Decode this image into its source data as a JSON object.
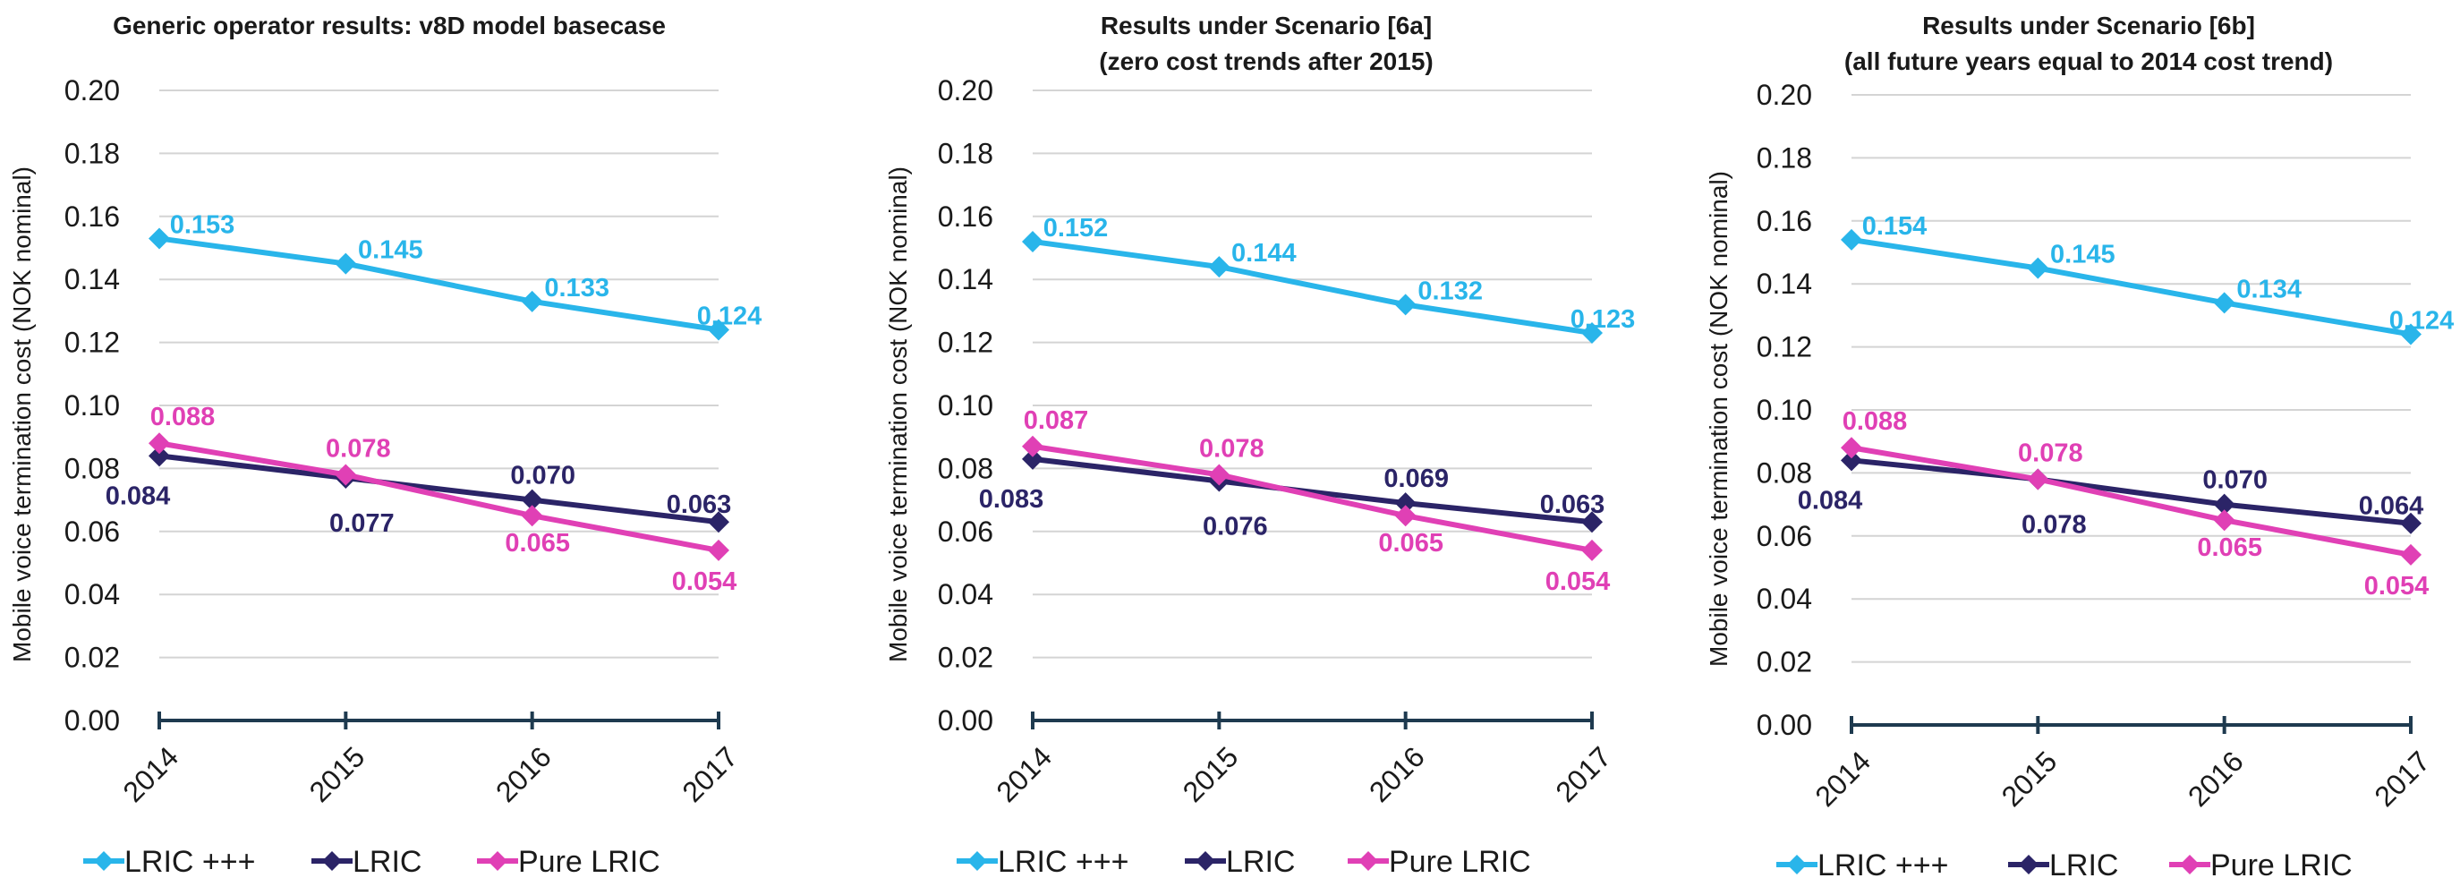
{
  "chart_data": [
    {
      "type": "line",
      "title": "Generic operator results: v8D model basecase",
      "subtitle": "",
      "ylabel": "Mobile voice termination cost (NOK nominal)",
      "xlabel": "",
      "categories": [
        "2014",
        "2015",
        "2016",
        "2017"
      ],
      "yticks": [
        "0.00",
        "0.02",
        "0.04",
        "0.06",
        "0.08",
        "0.10",
        "0.12",
        "0.14",
        "0.16",
        "0.18",
        "0.20"
      ],
      "ylim": [
        0,
        0.2
      ],
      "grid": "horizontal",
      "legend_position": "bottom",
      "series": [
        {
          "name": "LRIC +++",
          "color": "#29b5ea",
          "values": [
            0.153,
            0.145,
            0.133,
            0.124
          ],
          "labels": [
            "0.153",
            "0.145",
            "0.133",
            "0.124"
          ]
        },
        {
          "name": "LRIC",
          "color": "#2b2467",
          "values": [
            0.084,
            0.077,
            0.07,
            0.063
          ],
          "labels": [
            "0.084",
            "0.077",
            "0.070",
            "0.063"
          ]
        },
        {
          "name": "Pure LRIC",
          "color": "#e040b5",
          "values": [
            0.088,
            0.078,
            0.065,
            0.054
          ],
          "labels": [
            "0.088",
            "0.078",
            "0.065",
            "0.054"
          ]
        }
      ]
    },
    {
      "type": "line",
      "title": "Results under Scenario [6a]",
      "subtitle": "(zero cost trends after 2015)",
      "ylabel": "Mobile voice termination cost (NOK nominal)",
      "xlabel": "",
      "categories": [
        "2014",
        "2015",
        "2016",
        "2017"
      ],
      "yticks": [
        "0.00",
        "0.02",
        "0.04",
        "0.06",
        "0.08",
        "0.10",
        "0.12",
        "0.14",
        "0.16",
        "0.18",
        "0.20"
      ],
      "ylim": [
        0,
        0.2
      ],
      "grid": "horizontal",
      "legend_position": "bottom",
      "series": [
        {
          "name": "LRIC +++",
          "color": "#29b5ea",
          "values": [
            0.152,
            0.144,
            0.132,
            0.123
          ],
          "labels": [
            "0.152",
            "0.144",
            "0.132",
            "0.123"
          ]
        },
        {
          "name": "LRIC",
          "color": "#2b2467",
          "values": [
            0.083,
            0.076,
            0.069,
            0.063
          ],
          "labels": [
            "0.083",
            "0.076",
            "0.069",
            "0.063"
          ]
        },
        {
          "name": "Pure LRIC",
          "color": "#e040b5",
          "values": [
            0.087,
            0.078,
            0.065,
            0.054
          ],
          "labels": [
            "0.087",
            "0.078",
            "0.065",
            "0.054"
          ]
        }
      ]
    },
    {
      "type": "line",
      "title": "Results under Scenario [6b]",
      "subtitle": "(all future years equal to 2014 cost trend)",
      "ylabel": "Mobile voice termination cost (NOK nominal)",
      "xlabel": "",
      "categories": [
        "2014",
        "2015",
        "2016",
        "2017"
      ],
      "yticks": [
        "0.00",
        "0.02",
        "0.04",
        "0.06",
        "0.08",
        "0.10",
        "0.12",
        "0.14",
        "0.16",
        "0.18",
        "0.20"
      ],
      "ylim": [
        0,
        0.2
      ],
      "grid": "horizontal",
      "legend_position": "bottom",
      "series": [
        {
          "name": "LRIC +++",
          "color": "#29b5ea",
          "values": [
            0.154,
            0.145,
            0.134,
            0.124
          ],
          "labels": [
            "0.154",
            "0.145",
            "0.134",
            "0.124"
          ]
        },
        {
          "name": "LRIC",
          "color": "#2b2467",
          "values": [
            0.084,
            0.078,
            0.07,
            0.064
          ],
          "labels": [
            "0.084",
            "0.078",
            "0.070",
            "0.064"
          ]
        },
        {
          "name": "Pure LRIC",
          "color": "#e040b5",
          "values": [
            0.088,
            0.078,
            0.065,
            0.054
          ],
          "labels": [
            "0.088",
            "0.078",
            "0.065",
            "0.054"
          ]
        }
      ]
    }
  ]
}
